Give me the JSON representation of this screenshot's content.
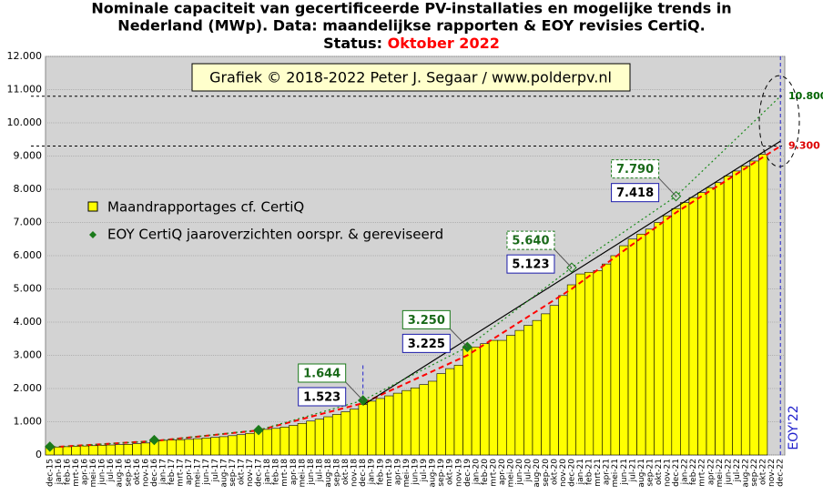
{
  "chart_data": {
    "type": "bar",
    "title": [
      "Nominale capaciteit van gecertificeerde PV-installaties en mogelijke trends in",
      "Nederland (MWp). Data: maandelijkse rapporten & EOY revisies CertiQ."
    ],
    "status_label": "Status:",
    "status": "Oktober 2022",
    "credit": "Grafiek © 2018-2022 Peter J. Segaar / www.polderpv.nl",
    "eoy_label": "EOY'22",
    "categories": [
      "dec-15",
      "jan-16",
      "feb-16",
      "mrt-16",
      "apr-16",
      "mei-16",
      "jun-16",
      "jul-16",
      "aug-16",
      "sep-16",
      "okt-16",
      "nov-16",
      "dec-16",
      "jan-17",
      "feb-17",
      "mrt-17",
      "apr-17",
      "mei-17",
      "jun-17",
      "jul-17",
      "aug-17",
      "sep-17",
      "okt-17",
      "nov-17",
      "dec-17",
      "jan-18",
      "feb-18",
      "mrt-18",
      "apr-18",
      "mei-18",
      "jun-18",
      "jul-18",
      "aug-18",
      "sep-18",
      "okt-18",
      "nov-18",
      "dec-18",
      "jan-19",
      "feb-19",
      "mrt-19",
      "apr-19",
      "mei-19",
      "jun-19",
      "jul-19",
      "aug-19",
      "sep-19",
      "okt-19",
      "nov-19",
      "dec-19",
      "jan-20",
      "feb-20",
      "mrt-20",
      "apr-20",
      "mei-20",
      "jun-20",
      "jul-20",
      "aug-20",
      "sep-20",
      "okt-20",
      "nov-20",
      "dec-20",
      "jan-21",
      "feb-21",
      "mrt-21",
      "apr-21",
      "mei-21",
      "jun-21",
      "jul-21",
      "aug-21",
      "sep-21",
      "okt-21",
      "nov-21",
      "dec-21",
      "jan-22",
      "feb-22",
      "mrt-22",
      "apr-22",
      "mei-22",
      "jun-22",
      "jul-22",
      "aug-22",
      "sep-22",
      "okt-22",
      "nov-22",
      "dec-22"
    ],
    "series": [
      {
        "name": "Maandrapportages cf. CertiQ",
        "color": "#ffff00",
        "values": [
          230,
          240,
          250,
          260,
          270,
          280,
          290,
          300,
          310,
          320,
          340,
          360,
          420,
          440,
          450,
          460,
          470,
          490,
          510,
          530,
          550,
          580,
          610,
          650,
          740,
          770,
          800,
          840,
          890,
          950,
          1020,
          1080,
          1150,
          1220,
          1300,
          1380,
          1523,
          1620,
          1700,
          1780,
          1860,
          1940,
          2020,
          2120,
          2220,
          2450,
          2600,
          2700,
          3225,
          3250,
          3350,
          3450,
          3450,
          3600,
          3750,
          3900,
          4050,
          4250,
          4500,
          4800,
          5123,
          5450,
          5500,
          5550,
          5750,
          6000,
          6300,
          6500,
          6650,
          6800,
          7000,
          7200,
          7418,
          7600,
          7750,
          7900,
          8050,
          8200,
          8400,
          8550,
          8700,
          8850,
          9050,
          null,
          null
        ]
      }
    ],
    "points": {
      "name": "EOY CertiQ jaaroverzichten oorspr. & gereviseerd",
      "color": "#1a7a1a",
      "x": [
        "dec-15",
        "dec-16",
        "dec-17",
        "dec-18",
        "dec-19",
        "dec-20",
        "dec-21"
      ],
      "values": [
        250,
        450,
        750,
        1644,
        3250,
        5640,
        7790
      ],
      "hollow": [
        false,
        false,
        false,
        false,
        false,
        true,
        true
      ]
    },
    "callouts": [
      {
        "x": "dec-18",
        "green": 1644,
        "green_label": "1.644",
        "blue": 1523,
        "blue_label": "1.523"
      },
      {
        "x": "dec-19",
        "green": 3250,
        "green_label": "3.250",
        "blue": 3225,
        "blue_label": "3.225"
      },
      {
        "x": "dec-20",
        "green": 5640,
        "green_label": "5.640",
        "blue": 5123,
        "blue_label": "5.123"
      },
      {
        "x": "dec-21",
        "green": 7790,
        "green_label": "7.790",
        "blue": 7418,
        "blue_label": "7.418"
      }
    ],
    "trends": [
      {
        "color": "#ff0000",
        "style": "dashed",
        "x": [
          "dec-15",
          "dec-16",
          "dec-17",
          "dec-18",
          "dec-19",
          "dec-20",
          "dec-21",
          "dec-22"
        ],
        "values": [
          230,
          420,
          740,
          1560,
          3000,
          5000,
          7300,
          9300
        ]
      },
      {
        "color": "#000000",
        "style": "solid",
        "x": [
          "dec-18",
          "dec-22"
        ],
        "values": [
          1500,
          9450
        ]
      },
      {
        "color": "#1a8a1a",
        "style": "dotted",
        "x": [
          "dec-15",
          "dec-16",
          "dec-17",
          "dec-18",
          "dec-19",
          "dec-20",
          "dec-21",
          "dec-22"
        ],
        "values": [
          230,
          420,
          750,
          1644,
          3250,
          5640,
          7790,
          10800
        ]
      }
    ],
    "hlines": [
      {
        "value": 10800,
        "label": "10.800",
        "color": "#006400"
      },
      {
        "value": 9300,
        "label": "9.300",
        "color": "#dd0000"
      }
    ],
    "vlines": [
      "dec-18",
      "dec-22"
    ],
    "ylim": [
      0,
      12000
    ],
    "yticks": [
      0,
      {
        "value": 1000,
        "label": "1.000"
      },
      {
        "value": 2000,
        "label": "2.000"
      },
      {
        "value": 3000,
        "label": "3.000"
      },
      {
        "value": 4000,
        "label": "4.000"
      },
      {
        "value": 5000,
        "label": "5.000"
      },
      {
        "value": 6000,
        "label": "6.000"
      },
      {
        "value": 7000,
        "label": "7.000"
      },
      {
        "value": 8000,
        "label": "8.000"
      },
      {
        "value": 9000,
        "label": "9.000"
      },
      {
        "value": 10000,
        "label": "10.000"
      },
      {
        "value": 11000,
        "label": "11.000"
      },
      {
        "value": 12000,
        "label": "12.000"
      }
    ],
    "grid": true
  }
}
